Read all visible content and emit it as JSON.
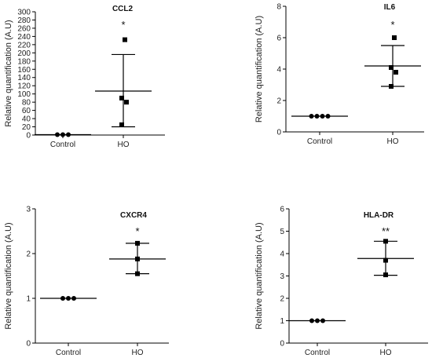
{
  "chart_data": [
    {
      "type": "scatter",
      "title": "CCL2",
      "ylabel": "Relative quantification (A.U)",
      "ylim": [
        0,
        300
      ],
      "yticks": [
        "0",
        "20",
        "40",
        "60",
        "80",
        "100",
        "120",
        "140",
        "160",
        "180",
        "200",
        "220",
        "240",
        "260",
        "280",
        "300"
      ],
      "categories": [
        "Control",
        "HO"
      ],
      "groups": [
        {
          "name": "Control",
          "marker": "circle",
          "points": [
            1,
            1,
            1
          ],
          "mean": 1,
          "err_low": 1,
          "err_high": 1
        },
        {
          "name": "HO",
          "marker": "square",
          "points": [
            232,
            90,
            80,
            25
          ],
          "mean": 107,
          "err_low": 20,
          "err_high": 196
        }
      ],
      "significance": "*"
    },
    {
      "type": "scatter",
      "title": "IL6",
      "ylabel": "Relative quantification (A.U)",
      "ylim": [
        0,
        8
      ],
      "yticks": [
        "0",
        "2",
        "4",
        "6",
        "8"
      ],
      "categories": [
        "Control",
        "HO"
      ],
      "groups": [
        {
          "name": "Control",
          "marker": "circle",
          "points": [
            1,
            1,
            1,
            1
          ],
          "mean": 1,
          "err_low": 1,
          "err_high": 1
        },
        {
          "name": "HO",
          "marker": "square",
          "points": [
            6.0,
            4.1,
            3.8,
            2.9
          ],
          "mean": 4.2,
          "err_low": 2.9,
          "err_high": 5.5
        }
      ],
      "significance": "*"
    },
    {
      "type": "scatter",
      "title": "CXCR4",
      "ylabel": "Relative quantification (A.U)",
      "ylim": [
        0,
        3
      ],
      "yticks": [
        "0",
        "1",
        "2",
        "3"
      ],
      "categories": [
        "Control",
        "HO"
      ],
      "groups": [
        {
          "name": "Control",
          "marker": "circle",
          "points": [
            1,
            1,
            1
          ],
          "mean": 1,
          "err_low": 1,
          "err_high": 1
        },
        {
          "name": "HO",
          "marker": "square",
          "points": [
            2.23,
            1.88,
            1.55
          ],
          "mean": 1.88,
          "err_low": 1.55,
          "err_high": 2.23
        }
      ],
      "significance": "*"
    },
    {
      "type": "scatter",
      "title": "HLA-DR",
      "ylabel": "Relative quantification (A.U)",
      "ylim": [
        0,
        6
      ],
      "yticks": [
        "0",
        "1",
        "2",
        "3",
        "4",
        "5",
        "6"
      ],
      "categories": [
        "Control",
        "HO"
      ],
      "groups": [
        {
          "name": "Control",
          "marker": "circle",
          "points": [
            1,
            1,
            1
          ],
          "mean": 1,
          "err_low": 1,
          "err_high": 1
        },
        {
          "name": "HO",
          "marker": "square",
          "points": [
            4.55,
            3.7,
            3.05
          ],
          "mean": 3.78,
          "err_low": 3.03,
          "err_high": 4.55
        }
      ],
      "significance": "**"
    }
  ]
}
